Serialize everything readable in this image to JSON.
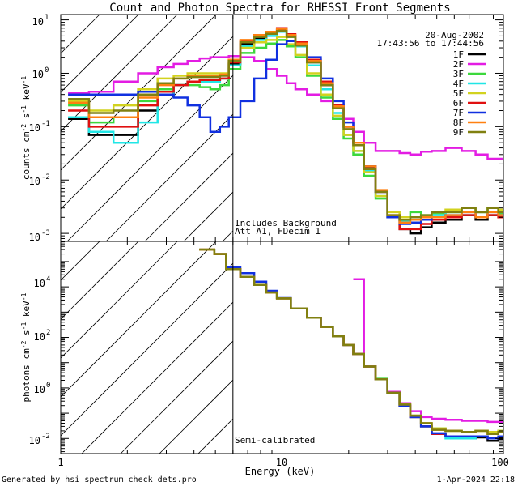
{
  "title": "Count and Photon Spectra for RHESSI Front Segments",
  "date": "20-Aug-2002",
  "time_range": "17:43:56 to 17:44:56",
  "footer_left": "Generated by hsi_spectrum_check_dets.pro",
  "footer_right": "1-Apr-2024 22:18",
  "xlabel": "Energy (keV)",
  "x_ticks": [
    "1",
    "10",
    "100"
  ],
  "x_range": [
    1,
    100
  ],
  "attenuator_energy_kev": 6,
  "legend": [
    {
      "name": "1F",
      "color": "#000000"
    },
    {
      "name": "2F",
      "color": "#e31ce3"
    },
    {
      "name": "3F",
      "color": "#3cd83c"
    },
    {
      "name": "4F",
      "color": "#20e6e6"
    },
    {
      "name": "5F",
      "color": "#d2d21e"
    },
    {
      "name": "6F",
      "color": "#e01010"
    },
    {
      "name": "7F",
      "color": "#1030e0"
    },
    {
      "name": "8F",
      "color": "#ff8010"
    },
    {
      "name": "9F",
      "color": "#808010"
    }
  ],
  "panels": {
    "counts": {
      "ylabel_parts": [
        "counts cm",
        "-2",
        " s",
        "-1",
        " keV",
        "-1"
      ],
      "y_ticks": [
        "10",
        "10",
        "10",
        "10",
        "10"
      ],
      "y_tick_exponents": [
        "1",
        "0",
        "-1",
        "-2",
        "-3"
      ],
      "y_range_log10": [
        -3.15,
        1.1
      ],
      "annotations": [
        "Includes Background",
        "Att A1, FDecim 1"
      ]
    },
    "photons": {
      "ylabel_parts": [
        "photons cm",
        "-2",
        " s",
        "-1",
        " keV",
        "-1"
      ],
      "y_ticks": [
        "10",
        "10",
        "10",
        "10"
      ],
      "y_tick_exponents": [
        "4",
        "2",
        "0",
        "-2"
      ],
      "y_range_log10": [
        -2.6,
        5.8
      ],
      "annotations": [
        "Semi-calibrated"
      ]
    }
  },
  "chart_data": [
    {
      "type": "line",
      "panel": "counts",
      "title": "Count and Photon Spectra for RHESSI Front Segments",
      "xlabel": "Energy (keV)",
      "ylabel": "counts cm^-2 s^-1 keV^-1",
      "xscale": "log",
      "yscale": "log",
      "xlim": [
        1,
        100
      ],
      "ylim": [
        0.0007,
        12
      ],
      "x": [
        1.2,
        1.5,
        2,
        2.5,
        3,
        3.5,
        4,
        4.5,
        5,
        5.5,
        6,
        7,
        8,
        9,
        10,
        11,
        12,
        14,
        16,
        18,
        20,
        22,
        25,
        28,
        32,
        36,
        40,
        45,
        50,
        60,
        70,
        80,
        90,
        100
      ],
      "series": [
        {
          "name": "1F",
          "values": [
            0.14,
            0.07,
            0.07,
            0.2,
            0.4,
            0.6,
            0.7,
            0.7,
            0.75,
            0.8,
            1.5,
            3.5,
            4.5,
            5.5,
            6.5,
            5,
            3.5,
            1.6,
            0.6,
            0.22,
            0.1,
            0.045,
            0.017,
            0.006,
            0.002,
            0.0012,
            0.001,
            0.0013,
            0.0016,
            0.0018,
            0.0022,
            0.0018,
            0.0022,
            0.002
          ]
        },
        {
          "name": "2F",
          "values": [
            0.42,
            0.45,
            0.7,
            1.0,
            1.3,
            1.5,
            1.7,
            1.9,
            2.0,
            2.0,
            2.1,
            2.0,
            1.7,
            1.2,
            0.9,
            0.65,
            0.5,
            0.4,
            0.3,
            0.22,
            0.14,
            0.08,
            0.05,
            0.035,
            0.035,
            0.032,
            0.03,
            0.034,
            0.035,
            0.04,
            0.035,
            0.03,
            0.025,
            0.025
          ]
        },
        {
          "name": "3F",
          "values": [
            0.25,
            0.12,
            0.15,
            0.3,
            0.5,
            0.6,
            0.6,
            0.55,
            0.5,
            0.6,
            1.2,
            2.4,
            3.0,
            3.6,
            4.2,
            3.2,
            2.0,
            0.9,
            0.35,
            0.14,
            0.06,
            0.03,
            0.012,
            0.0045,
            0.002,
            0.0018,
            0.0025,
            0.0022,
            0.0024,
            0.0025,
            0.003,
            0.0025,
            0.003,
            0.0024
          ]
        },
        {
          "name": "4F",
          "values": [
            0.15,
            0.08,
            0.05,
            0.12,
            0.4,
            0.6,
            0.7,
            0.7,
            0.7,
            0.8,
            1.4,
            3.2,
            4.2,
            5.0,
            6.0,
            4.8,
            3.2,
            1.4,
            0.5,
            0.18,
            0.07,
            0.035,
            0.015,
            0.005,
            0.002,
            0.0017,
            0.002,
            0.002,
            0.0022,
            0.0025,
            0.003,
            0.0025,
            0.003,
            0.0025
          ]
        },
        {
          "name": "5F",
          "values": [
            0.3,
            0.2,
            0.25,
            0.5,
            0.8,
            0.9,
            1.0,
            1.0,
            1.0,
            1.0,
            1.8,
            3.0,
            3.8,
            4.2,
            4.8,
            3.5,
            2.2,
            1.0,
            0.4,
            0.16,
            0.07,
            0.035,
            0.014,
            0.005,
            0.0025,
            0.002,
            0.002,
            0.002,
            0.0025,
            0.0028,
            0.003,
            0.0025,
            0.003,
            0.0028
          ]
        },
        {
          "name": "6F",
          "values": [
            0.2,
            0.1,
            0.1,
            0.25,
            0.45,
            0.6,
            0.7,
            0.75,
            0.75,
            0.8,
            1.6,
            4.0,
            5.0,
            6.0,
            7.0,
            5.4,
            3.8,
            1.8,
            0.7,
            0.25,
            0.1,
            0.05,
            0.018,
            0.006,
            0.002,
            0.0012,
            0.0012,
            0.0015,
            0.0018,
            0.002,
            0.0022,
            0.002,
            0.0022,
            0.002
          ]
        },
        {
          "name": "7F",
          "values": [
            0.4,
            0.4,
            0.4,
            0.45,
            0.4,
            0.35,
            0.25,
            0.15,
            0.08,
            0.1,
            0.15,
            0.3,
            0.8,
            1.8,
            3.5,
            4.0,
            3.5,
            2.0,
            0.8,
            0.3,
            0.12,
            0.05,
            0.018,
            0.006,
            0.002,
            0.0015,
            0.0016,
            0.0018,
            0.002,
            0.0022,
            0.0025,
            0.002,
            0.0025,
            0.0022
          ]
        },
        {
          "name": "8F",
          "values": [
            0.28,
            0.15,
            0.15,
            0.35,
            0.6,
            0.8,
            0.9,
            0.9,
            0.9,
            0.95,
            1.8,
            4.2,
            5.2,
            6.0,
            6.8,
            5.2,
            3.6,
            1.7,
            0.65,
            0.24,
            0.1,
            0.05,
            0.018,
            0.0065,
            0.0022,
            0.0016,
            0.0018,
            0.002,
            0.002,
            0.0022,
            0.0025,
            0.002,
            0.0025,
            0.0022
          ]
        },
        {
          "name": "9F",
          "values": [
            0.33,
            0.18,
            0.2,
            0.4,
            0.65,
            0.8,
            0.85,
            0.85,
            0.85,
            0.9,
            1.7,
            3.8,
            4.8,
            5.5,
            6.2,
            4.8,
            3.3,
            1.6,
            0.6,
            0.22,
            0.09,
            0.045,
            0.016,
            0.006,
            0.0022,
            0.0018,
            0.002,
            0.0022,
            0.0025,
            0.0025,
            0.003,
            0.0025,
            0.003,
            0.0025
          ]
        }
      ]
    },
    {
      "type": "line",
      "panel": "photons",
      "xlabel": "Energy (keV)",
      "ylabel": "photons cm^-2 s^-1 keV^-1",
      "xscale": "log",
      "yscale": "log",
      "xlim": [
        1,
        100
      ],
      "ylim": [
        0.0025,
        630000
      ],
      "x": [
        4.7,
        5.2,
        6,
        7,
        8,
        9,
        10,
        12,
        14,
        16,
        18,
        20,
        22,
        25,
        28,
        32,
        36,
        40,
        45,
        50,
        60,
        70,
        80,
        90,
        100
      ],
      "series": [
        {
          "name": "1F",
          "values": [
            300000,
            200000,
            50000,
            25000,
            12000,
            6000,
            3500,
            1400,
            600,
            260,
            110,
            50,
            22,
            7,
            2.2,
            0.6,
            0.2,
            0.07,
            0.03,
            0.015,
            0.012,
            0.01,
            0.011,
            0.008,
            0.01
          ]
        },
        {
          "name": "2F",
          "values": [
            null,
            null,
            null,
            null,
            null,
            null,
            null,
            null,
            null,
            null,
            null,
            null,
            20000,
            7,
            2.2,
            0.7,
            0.25,
            0.12,
            0.07,
            0.06,
            0.055,
            0.05,
            0.05,
            0.045,
            0.045
          ]
        },
        {
          "name": "3F",
          "values": [
            300000,
            200000,
            50000,
            25000,
            12000,
            6000,
            3500,
            1400,
            600,
            260,
            110,
            50,
            22,
            7,
            2.3,
            0.65,
            0.22,
            0.08,
            0.04,
            0.025,
            0.02,
            0.018,
            0.02,
            0.018,
            0.02
          ]
        },
        {
          "name": "4F",
          "values": [
            300000,
            200000,
            50000,
            25000,
            12000,
            6000,
            3500,
            1400,
            600,
            260,
            110,
            50,
            22,
            7,
            2.2,
            0.6,
            0.2,
            0.07,
            0.03,
            0.015,
            0.01,
            0.01,
            0.012,
            0.01,
            0.012
          ]
        },
        {
          "name": "5F",
          "values": [
            300000,
            200000,
            50000,
            25000,
            12000,
            6000,
            3500,
            1400,
            600,
            260,
            110,
            50,
            22,
            7,
            2.2,
            0.65,
            0.22,
            0.08,
            0.04,
            0.025,
            0.02,
            0.018,
            0.02,
            0.018,
            0.02
          ]
        },
        {
          "name": "6F",
          "values": [
            300000,
            200000,
            50000,
            25000,
            12000,
            6000,
            3500,
            1400,
            600,
            260,
            110,
            50,
            22,
            7,
            2.2,
            0.6,
            0.2,
            0.07,
            0.03,
            0.015,
            0.012,
            0.012,
            0.012,
            0.01,
            0.012
          ]
        },
        {
          "name": "7F",
          "values": [
            null,
            null,
            60000,
            35000,
            16000,
            7000,
            3600,
            1400,
            600,
            260,
            110,
            50,
            22,
            7,
            2.2,
            0.6,
            0.2,
            0.07,
            0.03,
            0.016,
            0.012,
            0.012,
            0.012,
            0.01,
            0.012
          ]
        },
        {
          "name": "8F",
          "values": [
            300000,
            200000,
            50000,
            25000,
            12000,
            6000,
            3500,
            1400,
            600,
            260,
            110,
            50,
            22,
            7,
            2.2,
            0.65,
            0.22,
            0.08,
            0.04,
            0.022,
            0.02,
            0.018,
            0.02,
            0.015,
            0.018
          ]
        },
        {
          "name": "9F",
          "values": [
            300000,
            200000,
            50000,
            25000,
            12000,
            6000,
            3500,
            1400,
            600,
            260,
            110,
            50,
            22,
            7,
            2.2,
            0.65,
            0.22,
            0.08,
            0.04,
            0.022,
            0.02,
            0.018,
            0.02,
            0.015,
            0.018
          ]
        }
      ]
    }
  ]
}
